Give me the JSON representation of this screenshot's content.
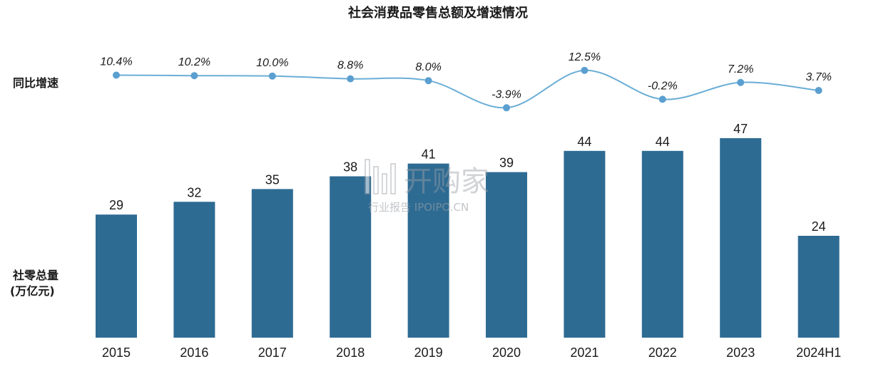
{
  "chart_data": {
    "type": "bar",
    "title": "社会消费品零售总额及增速情况",
    "categories": [
      "2015",
      "2016",
      "2017",
      "2018",
      "2019",
      "2020",
      "2021",
      "2022",
      "2023",
      "2024H1"
    ],
    "series": [
      {
        "name": "社零总量(万亿元)",
        "type": "bar",
        "values": [
          29,
          32,
          35,
          38,
          41,
          39,
          44,
          44,
          47,
          24
        ],
        "labels": [
          "29",
          "32",
          "35",
          "38",
          "41",
          "39",
          "44",
          "44",
          "47",
          "24"
        ]
      },
      {
        "name": "同比增速",
        "type": "line",
        "values": [
          10.4,
          10.2,
          10.0,
          8.8,
          8.0,
          -3.9,
          12.5,
          -0.2,
          7.2,
          3.7
        ],
        "labels": [
          "10.4%",
          "10.2%",
          "10.0%",
          "8.8%",
          "8.0%",
          "-3.9%",
          "12.5%",
          "-0.2%",
          "7.2%",
          "3.7%"
        ]
      }
    ],
    "rate_label": "同比增速",
    "volume_label_line1": "社零总量",
    "volume_label_line2": "(万亿元)",
    "colors": {
      "bar": "#2e6b93",
      "line": "#6aaed6",
      "marker": "#5b9fd0"
    }
  },
  "watermark": {
    "brand": "开购家",
    "sub": "行业报告 IPOIPO.CN"
  }
}
